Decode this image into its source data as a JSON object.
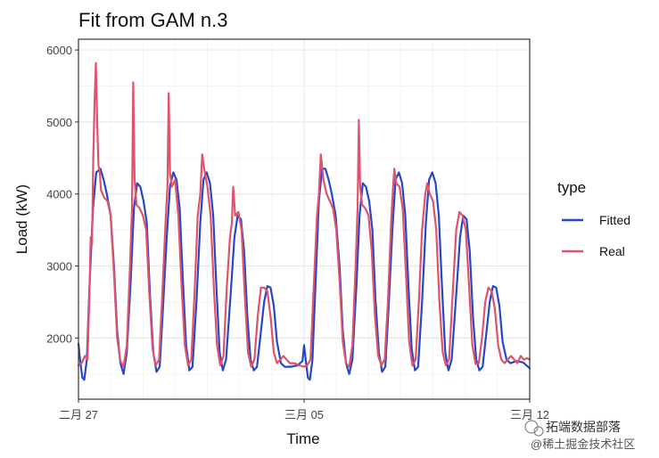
{
  "chart_data": {
    "type": "line",
    "title": "Fit from GAM n.3",
    "xlabel": "Time",
    "ylabel": "Load (kW)",
    "x_ticks": [
      {
        "day": 0,
        "label": "二月 27"
      },
      {
        "day": 7,
        "label": "三月 05"
      },
      {
        "day": 14,
        "label": "三月 12"
      }
    ],
    "xlim": [
      0,
      14
    ],
    "y_ticks": [
      2000,
      3000,
      4000,
      5000,
      6000
    ],
    "ylim": [
      1150,
      6150
    ],
    "grid": true,
    "legend": {
      "title": "type",
      "placement": "right"
    },
    "series": [
      {
        "name": "Fitted",
        "color": "#2747C6",
        "points": [
          [
            0.0,
            1920
          ],
          [
            0.05,
            1700
          ],
          [
            0.12,
            1450
          ],
          [
            0.18,
            1420
          ],
          [
            0.26,
            1700
          ],
          [
            0.34,
            2700
          ],
          [
            0.45,
            3800
          ],
          [
            0.55,
            4300
          ],
          [
            0.68,
            4350
          ],
          [
            0.78,
            4200
          ],
          [
            0.88,
            4000
          ],
          [
            1.0,
            3700
          ],
          [
            1.1,
            3000
          ],
          [
            1.2,
            2100
          ],
          [
            1.3,
            1650
          ],
          [
            1.4,
            1500
          ],
          [
            1.5,
            1800
          ],
          [
            1.62,
            2800
          ],
          [
            1.72,
            3800
          ],
          [
            1.82,
            4150
          ],
          [
            1.92,
            4100
          ],
          [
            2.02,
            3900
          ],
          [
            2.12,
            3600
          ],
          [
            2.22,
            2600
          ],
          [
            2.32,
            1800
          ],
          [
            2.42,
            1530
          ],
          [
            2.52,
            1600
          ],
          [
            2.62,
            2400
          ],
          [
            2.74,
            3400
          ],
          [
            2.84,
            4100
          ],
          [
            2.94,
            4300
          ],
          [
            3.04,
            4200
          ],
          [
            3.14,
            3800
          ],
          [
            3.24,
            2800
          ],
          [
            3.34,
            1900
          ],
          [
            3.44,
            1550
          ],
          [
            3.54,
            1600
          ],
          [
            3.66,
            2500
          ],
          [
            3.78,
            3600
          ],
          [
            3.88,
            4200
          ],
          [
            3.98,
            4300
          ],
          [
            4.08,
            4150
          ],
          [
            4.18,
            3700
          ],
          [
            4.28,
            2700
          ],
          [
            4.38,
            1800
          ],
          [
            4.48,
            1550
          ],
          [
            4.58,
            1700
          ],
          [
            4.72,
            2600
          ],
          [
            4.84,
            3400
          ],
          [
            4.94,
            3700
          ],
          [
            5.04,
            3650
          ],
          [
            5.14,
            3200
          ],
          [
            5.24,
            2300
          ],
          [
            5.34,
            1700
          ],
          [
            5.44,
            1550
          ],
          [
            5.54,
            1600
          ],
          [
            5.64,
            2000
          ],
          [
            5.76,
            2500
          ],
          [
            5.86,
            2720
          ],
          [
            5.96,
            2700
          ],
          [
            6.06,
            2450
          ],
          [
            6.16,
            1950
          ],
          [
            6.28,
            1650
          ],
          [
            6.4,
            1600
          ],
          [
            6.6,
            1600
          ],
          [
            6.8,
            1620
          ],
          [
            6.95,
            1680
          ],
          [
            7.0,
            1900
          ],
          [
            7.05,
            1700
          ],
          [
            7.12,
            1450
          ],
          [
            7.18,
            1420
          ],
          [
            7.26,
            1700
          ],
          [
            7.36,
            2800
          ],
          [
            7.46,
            3900
          ],
          [
            7.56,
            4350
          ],
          [
            7.66,
            4350
          ],
          [
            7.76,
            4200
          ],
          [
            7.86,
            4000
          ],
          [
            7.98,
            3700
          ],
          [
            8.1,
            3000
          ],
          [
            8.2,
            2100
          ],
          [
            8.3,
            1650
          ],
          [
            8.4,
            1500
          ],
          [
            8.5,
            1700
          ],
          [
            8.62,
            2700
          ],
          [
            8.72,
            3700
          ],
          [
            8.82,
            4150
          ],
          [
            8.92,
            4100
          ],
          [
            9.02,
            3900
          ],
          [
            9.12,
            3500
          ],
          [
            9.22,
            2500
          ],
          [
            9.32,
            1800
          ],
          [
            9.42,
            1530
          ],
          [
            9.52,
            1600
          ],
          [
            9.62,
            2400
          ],
          [
            9.74,
            3500
          ],
          [
            9.84,
            4200
          ],
          [
            9.94,
            4300
          ],
          [
            10.04,
            4150
          ],
          [
            10.14,
            3700
          ],
          [
            10.24,
            2700
          ],
          [
            10.34,
            1850
          ],
          [
            10.44,
            1550
          ],
          [
            10.54,
            1600
          ],
          [
            10.66,
            2500
          ],
          [
            10.78,
            3600
          ],
          [
            10.88,
            4200
          ],
          [
            10.98,
            4300
          ],
          [
            11.08,
            4150
          ],
          [
            11.18,
            3700
          ],
          [
            11.28,
            2700
          ],
          [
            11.38,
            1800
          ],
          [
            11.48,
            1550
          ],
          [
            11.58,
            1700
          ],
          [
            11.72,
            2600
          ],
          [
            11.84,
            3400
          ],
          [
            11.94,
            3700
          ],
          [
            12.04,
            3650
          ],
          [
            12.14,
            3200
          ],
          [
            12.24,
            2300
          ],
          [
            12.34,
            1700
          ],
          [
            12.44,
            1550
          ],
          [
            12.54,
            1600
          ],
          [
            12.64,
            2000
          ],
          [
            12.76,
            2500
          ],
          [
            12.86,
            2720
          ],
          [
            12.96,
            2700
          ],
          [
            13.06,
            2450
          ],
          [
            13.16,
            1950
          ],
          [
            13.28,
            1700
          ],
          [
            13.4,
            1650
          ],
          [
            13.6,
            1680
          ],
          [
            13.8,
            1660
          ],
          [
            14.0,
            1580
          ]
        ]
      },
      {
        "name": "Real",
        "color": "#DF536B",
        "points": [
          [
            0.0,
            1620
          ],
          [
            0.1,
            1650
          ],
          [
            0.2,
            1750
          ],
          [
            0.28,
            1700
          ],
          [
            0.34,
            2600
          ],
          [
            0.38,
            3400
          ],
          [
            0.42,
            3300
          ],
          [
            0.46,
            4500
          ],
          [
            0.5,
            5300
          ],
          [
            0.54,
            5820
          ],
          [
            0.58,
            5000
          ],
          [
            0.62,
            4400
          ],
          [
            0.66,
            4300
          ],
          [
            0.7,
            4050
          ],
          [
            0.8,
            3950
          ],
          [
            0.9,
            3900
          ],
          [
            1.0,
            3700
          ],
          [
            1.1,
            2900
          ],
          [
            1.2,
            2000
          ],
          [
            1.3,
            1680
          ],
          [
            1.4,
            1600
          ],
          [
            1.5,
            1900
          ],
          [
            1.6,
            3000
          ],
          [
            1.66,
            3800
          ],
          [
            1.7,
            5550
          ],
          [
            1.74,
            4200
          ],
          [
            1.8,
            3850
          ],
          [
            1.9,
            3800
          ],
          [
            2.0,
            3700
          ],
          [
            2.1,
            3500
          ],
          [
            2.2,
            2600
          ],
          [
            2.3,
            1850
          ],
          [
            2.4,
            1620
          ],
          [
            2.5,
            1700
          ],
          [
            2.6,
            2600
          ],
          [
            2.7,
            3600
          ],
          [
            2.76,
            4100
          ],
          [
            2.8,
            5400
          ],
          [
            2.84,
            4300
          ],
          [
            2.9,
            4100
          ],
          [
            3.0,
            4200
          ],
          [
            3.1,
            3700
          ],
          [
            3.2,
            2700
          ],
          [
            3.3,
            1900
          ],
          [
            3.4,
            1620
          ],
          [
            3.5,
            1700
          ],
          [
            3.6,
            2600
          ],
          [
            3.7,
            3700
          ],
          [
            3.78,
            4000
          ],
          [
            3.84,
            4550
          ],
          [
            3.9,
            4350
          ],
          [
            4.0,
            4100
          ],
          [
            4.1,
            3700
          ],
          [
            4.2,
            2700
          ],
          [
            4.3,
            1900
          ],
          [
            4.4,
            1620
          ],
          [
            4.5,
            1750
          ],
          [
            4.6,
            2700
          ],
          [
            4.7,
            3400
          ],
          [
            4.76,
            3600
          ],
          [
            4.8,
            4100
          ],
          [
            4.86,
            3700
          ],
          [
            4.96,
            3750
          ],
          [
            5.06,
            3500
          ],
          [
            5.16,
            2600
          ],
          [
            5.26,
            1800
          ],
          [
            5.36,
            1600
          ],
          [
            5.46,
            1700
          ],
          [
            5.56,
            2300
          ],
          [
            5.66,
            2700
          ],
          [
            5.76,
            2700
          ],
          [
            5.86,
            2650
          ],
          [
            5.96,
            2300
          ],
          [
            6.06,
            1800
          ],
          [
            6.16,
            1650
          ],
          [
            6.26,
            1700
          ],
          [
            6.36,
            1750
          ],
          [
            6.46,
            1700
          ],
          [
            6.56,
            1650
          ],
          [
            6.7,
            1650
          ],
          [
            6.85,
            1620
          ],
          [
            7.0,
            1600
          ],
          [
            7.1,
            1620
          ],
          [
            7.2,
            1700
          ],
          [
            7.3,
            2700
          ],
          [
            7.4,
            3700
          ],
          [
            7.46,
            4000
          ],
          [
            7.52,
            4550
          ],
          [
            7.6,
            4200
          ],
          [
            7.7,
            4000
          ],
          [
            7.8,
            3900
          ],
          [
            7.9,
            3800
          ],
          [
            8.0,
            3500
          ],
          [
            8.1,
            2800
          ],
          [
            8.2,
            1950
          ],
          [
            8.3,
            1650
          ],
          [
            8.4,
            1600
          ],
          [
            8.5,
            1900
          ],
          [
            8.6,
            3000
          ],
          [
            8.66,
            3800
          ],
          [
            8.7,
            5030
          ],
          [
            8.74,
            4100
          ],
          [
            8.8,
            3850
          ],
          [
            8.9,
            3800
          ],
          [
            9.0,
            3700
          ],
          [
            9.1,
            3200
          ],
          [
            9.2,
            2300
          ],
          [
            9.3,
            1750
          ],
          [
            9.4,
            1620
          ],
          [
            9.5,
            1700
          ],
          [
            9.6,
            2500
          ],
          [
            9.7,
            3600
          ],
          [
            9.76,
            4100
          ],
          [
            9.8,
            4350
          ],
          [
            9.86,
            4150
          ],
          [
            9.96,
            4100
          ],
          [
            10.06,
            3800
          ],
          [
            10.16,
            2900
          ],
          [
            10.26,
            1950
          ],
          [
            10.36,
            1620
          ],
          [
            10.46,
            1700
          ],
          [
            10.56,
            2500
          ],
          [
            10.66,
            3500
          ],
          [
            10.76,
            4000
          ],
          [
            10.82,
            4150
          ],
          [
            10.9,
            4000
          ],
          [
            11.0,
            3900
          ],
          [
            11.1,
            3500
          ],
          [
            11.2,
            2500
          ],
          [
            11.3,
            1800
          ],
          [
            11.4,
            1620
          ],
          [
            11.5,
            1700
          ],
          [
            11.62,
            2700
          ],
          [
            11.72,
            3500
          ],
          [
            11.82,
            3750
          ],
          [
            11.92,
            3700
          ],
          [
            12.02,
            3500
          ],
          [
            12.12,
            2700
          ],
          [
            12.22,
            1900
          ],
          [
            12.32,
            1640
          ],
          [
            12.42,
            1650
          ],
          [
            12.52,
            2000
          ],
          [
            12.62,
            2500
          ],
          [
            12.72,
            2700
          ],
          [
            12.82,
            2650
          ],
          [
            12.92,
            2400
          ],
          [
            13.02,
            1900
          ],
          [
            13.12,
            1700
          ],
          [
            13.22,
            1650
          ],
          [
            13.32,
            1700
          ],
          [
            13.42,
            1750
          ],
          [
            13.52,
            1700
          ],
          [
            13.62,
            1650
          ],
          [
            13.72,
            1750
          ],
          [
            13.82,
            1700
          ],
          [
            13.92,
            1720
          ],
          [
            14.0,
            1700
          ]
        ]
      }
    ]
  },
  "watermark": {
    "line1": "拓端数据部落",
    "line2": "@稀土掘金技术社区"
  }
}
